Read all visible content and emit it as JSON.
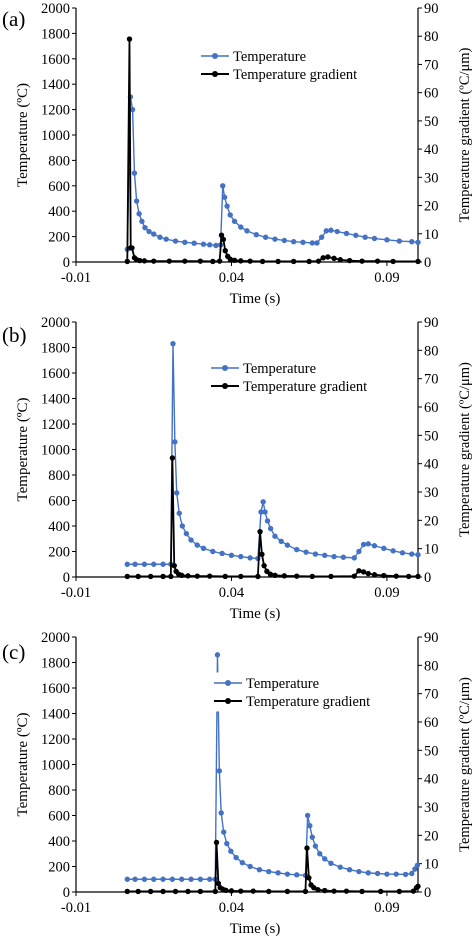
{
  "colors": {
    "temperature": "#4472C4",
    "gradient": "#000000"
  },
  "chart_data": [
    {
      "type": "line",
      "panel_label": "(a)",
      "xlabel": "Time (s)",
      "ylabel": "Temperature (ºC)",
      "y2label": "Temperature gradient (ºC/μm)",
      "xlim": [
        -0.01,
        0.1
      ],
      "xticks": [
        -0.01,
        0.04,
        0.09
      ],
      "xtick_labels": [
        "-0.01",
        "0.04",
        "0.09"
      ],
      "ylim": [
        0,
        2000
      ],
      "yticks": [
        0,
        200,
        400,
        600,
        800,
        1000,
        1200,
        1400,
        1600,
        1800,
        2000
      ],
      "y2lim": [
        0,
        90
      ],
      "y2ticks": [
        0,
        10,
        20,
        30,
        40,
        50,
        60,
        70,
        80,
        90
      ],
      "legend": [
        "Temperature",
        "Temperature gradient"
      ],
      "legend_position": "upper-right",
      "series": [
        {
          "name": "Temperature",
          "axis": "left",
          "points": [
            [
              0.0065,
              100
            ],
            [
              0.0075,
              1300
            ],
            [
              0.0082,
              1200
            ],
            [
              0.0088,
              700
            ],
            [
              0.0095,
              480
            ],
            [
              0.0103,
              380
            ],
            [
              0.0112,
              320
            ],
            [
              0.0122,
              270
            ],
            [
              0.0135,
              240
            ],
            [
              0.015,
              220
            ],
            [
              0.017,
              195
            ],
            [
              0.019,
              180
            ],
            [
              0.022,
              165
            ],
            [
              0.025,
              155
            ],
            [
              0.028,
              148
            ],
            [
              0.031,
              140
            ],
            [
              0.033,
              135
            ],
            [
              0.035,
              130
            ],
            [
              0.0365,
              135
            ],
            [
              0.0372,
              600
            ],
            [
              0.0378,
              510
            ],
            [
              0.0386,
              440
            ],
            [
              0.0396,
              370
            ],
            [
              0.041,
              320
            ],
            [
              0.043,
              275
            ],
            [
              0.045,
              245
            ],
            [
              0.048,
              215
            ],
            [
              0.051,
              195
            ],
            [
              0.054,
              180
            ],
            [
              0.057,
              170
            ],
            [
              0.06,
              160
            ],
            [
              0.063,
              155
            ],
            [
              0.066,
              150
            ],
            [
              0.0675,
              150
            ],
            [
              0.069,
              195
            ],
            [
              0.0705,
              245
            ],
            [
              0.072,
              250
            ],
            [
              0.074,
              240
            ],
            [
              0.077,
              225
            ],
            [
              0.08,
              210
            ],
            [
              0.083,
              195
            ],
            [
              0.086,
              185
            ],
            [
              0.09,
              175
            ],
            [
              0.094,
              165
            ],
            [
              0.098,
              160
            ],
            [
              0.1,
              155
            ]
          ]
        },
        {
          "name": "Temperature gradient",
          "axis": "right",
          "points": [
            [
              0.0065,
              0.2
            ],
            [
              0.0072,
              79
            ],
            [
              0.0076,
              5
            ],
            [
              0.008,
              5
            ],
            [
              0.0088,
              1.5
            ],
            [
              0.0095,
              0.8
            ],
            [
              0.0105,
              0.5
            ],
            [
              0.012,
              0.4
            ],
            [
              0.015,
              0.3
            ],
            [
              0.02,
              0.3
            ],
            [
              0.025,
              0.3
            ],
            [
              0.03,
              0.3
            ],
            [
              0.034,
              0.2
            ],
            [
              0.0362,
              0.3
            ],
            [
              0.0368,
              9.5
            ],
            [
              0.0374,
              8
            ],
            [
              0.038,
              4
            ],
            [
              0.0388,
              2
            ],
            [
              0.0396,
              1
            ],
            [
              0.041,
              0.6
            ],
            [
              0.043,
              0.4
            ],
            [
              0.046,
              0.3
            ],
            [
              0.05,
              0.2
            ],
            [
              0.055,
              0.2
            ],
            [
              0.06,
              0.2
            ],
            [
              0.065,
              0.2
            ],
            [
              0.068,
              0.3
            ],
            [
              0.0695,
              1.5
            ],
            [
              0.071,
              1.8
            ],
            [
              0.073,
              1.3
            ],
            [
              0.075,
              0.8
            ],
            [
              0.078,
              0.5
            ],
            [
              0.082,
              0.3
            ],
            [
              0.087,
              0.3
            ],
            [
              0.092,
              0.2
            ],
            [
              0.1,
              0.2
            ]
          ]
        }
      ]
    },
    {
      "type": "line",
      "panel_label": "(b)",
      "xlabel": "Time (s)",
      "ylabel": "Temperature (ºC)",
      "y2label": "Temperature gradient (ºC/μm)",
      "xlim": [
        -0.01,
        0.1
      ],
      "xticks": [
        -0.01,
        0.04,
        0.09
      ],
      "xtick_labels": [
        "-0.01",
        "0.04",
        "0.09"
      ],
      "ylim": [
        0,
        2000
      ],
      "yticks": [
        0,
        200,
        400,
        600,
        800,
        1000,
        1200,
        1400,
        1600,
        1800,
        2000
      ],
      "y2lim": [
        0,
        90
      ],
      "y2ticks": [
        0,
        10,
        20,
        30,
        40,
        50,
        60,
        70,
        80,
        90
      ],
      "legend": [
        "Temperature",
        "Temperature gradient"
      ],
      "legend_position": "upper-right",
      "series": [
        {
          "name": "Temperature",
          "axis": "left",
          "points": [
            [
              0.0065,
              100
            ],
            [
              0.009,
              100
            ],
            [
              0.012,
              100
            ],
            [
              0.015,
              100
            ],
            [
              0.018,
              100
            ],
            [
              0.0205,
              100
            ],
            [
              0.0212,
              1830
            ],
            [
              0.0218,
              1060
            ],
            [
              0.0224,
              660
            ],
            [
              0.0232,
              500
            ],
            [
              0.0242,
              400
            ],
            [
              0.0255,
              340
            ],
            [
              0.027,
              290
            ],
            [
              0.029,
              250
            ],
            [
              0.031,
              225
            ],
            [
              0.034,
              200
            ],
            [
              0.037,
              185
            ],
            [
              0.04,
              170
            ],
            [
              0.043,
              160
            ],
            [
              0.046,
              150
            ],
            [
              0.0485,
              145
            ],
            [
              0.0495,
              510
            ],
            [
              0.0502,
              590
            ],
            [
              0.0508,
              510
            ],
            [
              0.0516,
              440
            ],
            [
              0.0526,
              380
            ],
            [
              0.054,
              320
            ],
            [
              0.056,
              280
            ],
            [
              0.058,
              250
            ],
            [
              0.061,
              215
            ],
            [
              0.064,
              195
            ],
            [
              0.067,
              180
            ],
            [
              0.07,
              170
            ],
            [
              0.073,
              160
            ],
            [
              0.076,
              155
            ],
            [
              0.0795,
              150
            ],
            [
              0.081,
              200
            ],
            [
              0.0825,
              255
            ],
            [
              0.084,
              260
            ],
            [
              0.086,
              245
            ],
            [
              0.089,
              225
            ],
            [
              0.092,
              205
            ],
            [
              0.095,
              190
            ],
            [
              0.098,
              180
            ],
            [
              0.1,
              175
            ]
          ]
        },
        {
          "name": "Temperature gradient",
          "axis": "right",
          "points": [
            [
              0.0065,
              0.2
            ],
            [
              0.01,
              0.2
            ],
            [
              0.014,
              0.2
            ],
            [
              0.018,
              0.2
            ],
            [
              0.0205,
              0.2
            ],
            [
              0.021,
              42
            ],
            [
              0.0216,
              4
            ],
            [
              0.0222,
              2
            ],
            [
              0.023,
              1
            ],
            [
              0.024,
              0.6
            ],
            [
              0.026,
              0.4
            ],
            [
              0.029,
              0.3
            ],
            [
              0.033,
              0.3
            ],
            [
              0.038,
              0.2
            ],
            [
              0.043,
              0.2
            ],
            [
              0.0485,
              0.2
            ],
            [
              0.0492,
              16
            ],
            [
              0.0498,
              8
            ],
            [
              0.0505,
              4
            ],
            [
              0.0514,
              2
            ],
            [
              0.0525,
              1
            ],
            [
              0.054,
              0.6
            ],
            [
              0.057,
              0.4
            ],
            [
              0.061,
              0.3
            ],
            [
              0.066,
              0.2
            ],
            [
              0.072,
              0.2
            ],
            [
              0.0795,
              0.3
            ],
            [
              0.081,
              2.2
            ],
            [
              0.0825,
              1.8
            ],
            [
              0.084,
              1.2
            ],
            [
              0.086,
              0.8
            ],
            [
              0.089,
              0.5
            ],
            [
              0.093,
              0.3
            ],
            [
              0.097,
              0.2
            ],
            [
              0.1,
              0.2
            ]
          ]
        }
      ]
    },
    {
      "type": "line",
      "panel_label": "(c)",
      "xlabel": "Time (s)",
      "ylabel": "Temperature (ºC)",
      "y2label": "Temperature gradient (ºC/μm)",
      "xlim": [
        -0.01,
        0.1
      ],
      "xticks": [
        -0.01,
        0.04,
        0.09
      ],
      "xtick_labels": [
        "-0.01",
        "0.04",
        "0.09"
      ],
      "ylim": [
        0,
        2000
      ],
      "yticks": [
        0,
        200,
        400,
        600,
        800,
        1000,
        1200,
        1400,
        1600,
        1800,
        2000
      ],
      "y2lim": [
        0,
        90
      ],
      "y2ticks": [
        0,
        10,
        20,
        30,
        40,
        50,
        60,
        70,
        80,
        90
      ],
      "legend": [
        "Temperature",
        "Temperature gradient"
      ],
      "legend_position": "upper-right",
      "series": [
        {
          "name": "Temperature",
          "axis": "left",
          "points": [
            [
              0.0065,
              100
            ],
            [
              0.009,
              100
            ],
            [
              0.012,
              100
            ],
            [
              0.015,
              100
            ],
            [
              0.018,
              100
            ],
            [
              0.021,
              100
            ],
            [
              0.024,
              100
            ],
            [
              0.027,
              100
            ],
            [
              0.03,
              100
            ],
            [
              0.033,
              100
            ],
            [
              0.0348,
              100
            ],
            [
              0.0355,
              1860
            ],
            [
              0.0361,
              950
            ],
            [
              0.0367,
              620
            ],
            [
              0.0375,
              470
            ],
            [
              0.0385,
              380
            ],
            [
              0.0398,
              320
            ],
            [
              0.0415,
              270
            ],
            [
              0.0435,
              230
            ],
            [
              0.046,
              200
            ],
            [
              0.049,
              175
            ],
            [
              0.052,
              160
            ],
            [
              0.055,
              150
            ],
            [
              0.058,
              140
            ],
            [
              0.061,
              135
            ],
            [
              0.0638,
              130
            ],
            [
              0.0645,
              600
            ],
            [
              0.0652,
              520
            ],
            [
              0.066,
              430
            ],
            [
              0.067,
              360
            ],
            [
              0.0684,
              300
            ],
            [
              0.07,
              260
            ],
            [
              0.072,
              225
            ],
            [
              0.075,
              195
            ],
            [
              0.078,
              175
            ],
            [
              0.081,
              160
            ],
            [
              0.084,
              150
            ],
            [
              0.087,
              145
            ],
            [
              0.09,
              140
            ],
            [
              0.093,
              140
            ],
            [
              0.096,
              138
            ],
            [
              0.098,
              145
            ],
            [
              0.099,
              180
            ],
            [
              0.0998,
              210
            ]
          ]
        },
        {
          "name": "Temperature gradient",
          "axis": "right",
          "points": [
            [
              0.0065,
              0.2
            ],
            [
              0.01,
              0.2
            ],
            [
              0.014,
              0.2
            ],
            [
              0.018,
              0.2
            ],
            [
              0.022,
              0.2
            ],
            [
              0.026,
              0.2
            ],
            [
              0.03,
              0.2
            ],
            [
              0.0348,
              0.2
            ],
            [
              0.0352,
              17.5
            ],
            [
              0.0358,
              3
            ],
            [
              0.0364,
              1.5
            ],
            [
              0.0372,
              1
            ],
            [
              0.0382,
              0.6
            ],
            [
              0.04,
              0.4
            ],
            [
              0.043,
              0.3
            ],
            [
              0.047,
              0.3
            ],
            [
              0.052,
              0.2
            ],
            [
              0.058,
              0.2
            ],
            [
              0.0638,
              0.2
            ],
            [
              0.0643,
              15.5
            ],
            [
              0.0649,
              5
            ],
            [
              0.0656,
              2.5
            ],
            [
              0.0665,
              1.5
            ],
            [
              0.0678,
              0.8
            ],
            [
              0.07,
              0.5
            ],
            [
              0.073,
              0.3
            ],
            [
              0.077,
              0.3
            ],
            [
              0.082,
              0.2
            ],
            [
              0.088,
              0.2
            ],
            [
              0.094,
              0.2
            ],
            [
              0.0985,
              0.3
            ],
            [
              0.0995,
              1.5
            ],
            [
              0.1,
              2
            ]
          ]
        }
      ]
    }
  ]
}
